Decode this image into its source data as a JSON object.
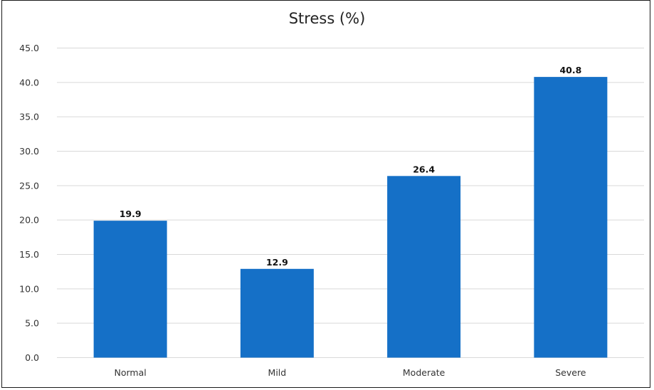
{
  "chart_data": {
    "type": "bar",
    "title": "Stress (%)",
    "xlabel": "",
    "ylabel": "",
    "categories": [
      "Normal",
      "Mild",
      "Moderate",
      "Severe"
    ],
    "values": [
      19.9,
      12.9,
      26.4,
      40.8
    ],
    "data_labels": [
      "19.9",
      "12.9",
      "26.4",
      "40.8"
    ],
    "ylim": [
      0,
      45
    ],
    "yticks": [
      "0.0",
      "5.0",
      "10.0",
      "15.0",
      "20.0",
      "25.0",
      "30.0",
      "35.0",
      "40.0",
      "45.0"
    ],
    "grid": true,
    "legend": "none",
    "bar_color": "#1570C7",
    "gridline_color": "#D9D9D9"
  }
}
